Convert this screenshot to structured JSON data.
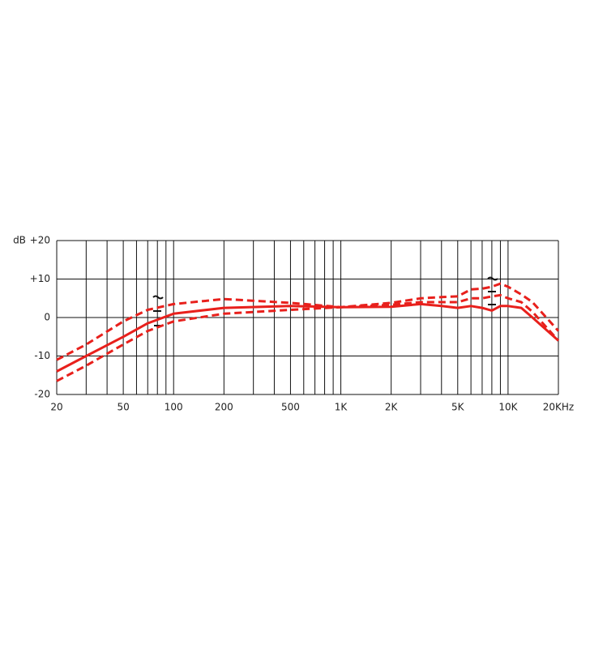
{
  "chart_data": {
    "type": "line",
    "log_x": true,
    "grid": true,
    "y_label": "dB",
    "x": [
      20,
      30,
      50,
      70,
      100,
      200,
      500,
      1000,
      2000,
      3000,
      4000,
      5000,
      6000,
      7000,
      8000,
      9000,
      10000,
      12000,
      14000,
      20000
    ],
    "series": [
      {
        "color": "#e8201c",
        "line_style": "solid",
        "values": [
          -14,
          -10,
          -5,
          -1.5,
          1,
          2.5,
          3,
          2.7,
          2.8,
          3.5,
          3,
          2.5,
          3,
          2.5,
          1.8,
          3,
          3,
          2.5,
          0,
          -6
        ]
      },
      {
        "color": "#e8201c",
        "line_style": "dashed",
        "values": [
          -11,
          -7,
          -1,
          2,
          3.5,
          4.8,
          3.8,
          2.7,
          3.8,
          5,
          5.3,
          5.5,
          7.3,
          7.5,
          8,
          8.8,
          8,
          6,
          4,
          -3.5
        ]
      },
      {
        "color": "#e8201c",
        "line_style": "dashed",
        "values": [
          -16.5,
          -12.5,
          -7,
          -3.5,
          -1,
          1,
          2,
          2.7,
          3.3,
          4,
          4,
          4,
          5,
          5,
          5.5,
          5.8,
          5,
          4,
          1.5,
          -6
        ]
      }
    ],
    "xlim": [
      20,
      20000
    ],
    "xticks": [
      20,
      50,
      100,
      200,
      500,
      {
        "value": 1000,
        "label": "1K"
      },
      {
        "value": 2000,
        "label": "2K"
      },
      {
        "value": 5000,
        "label": "5K"
      },
      {
        "value": 10000,
        "label": "10K"
      },
      {
        "value": 20000,
        "label": "20KHz"
      }
    ],
    "x_minor_gridlines": [
      30,
      40,
      60,
      70,
      80,
      90,
      300,
      400,
      600,
      700,
      800,
      900,
      3000,
      4000,
      6000,
      7000,
      8000,
      9000
    ],
    "ylim": [
      -20,
      20
    ],
    "yticks": [
      {
        "value": 20,
        "label": "+20"
      },
      {
        "value": 10,
        "label": "+10"
      },
      0,
      -10,
      -20
    ]
  }
}
